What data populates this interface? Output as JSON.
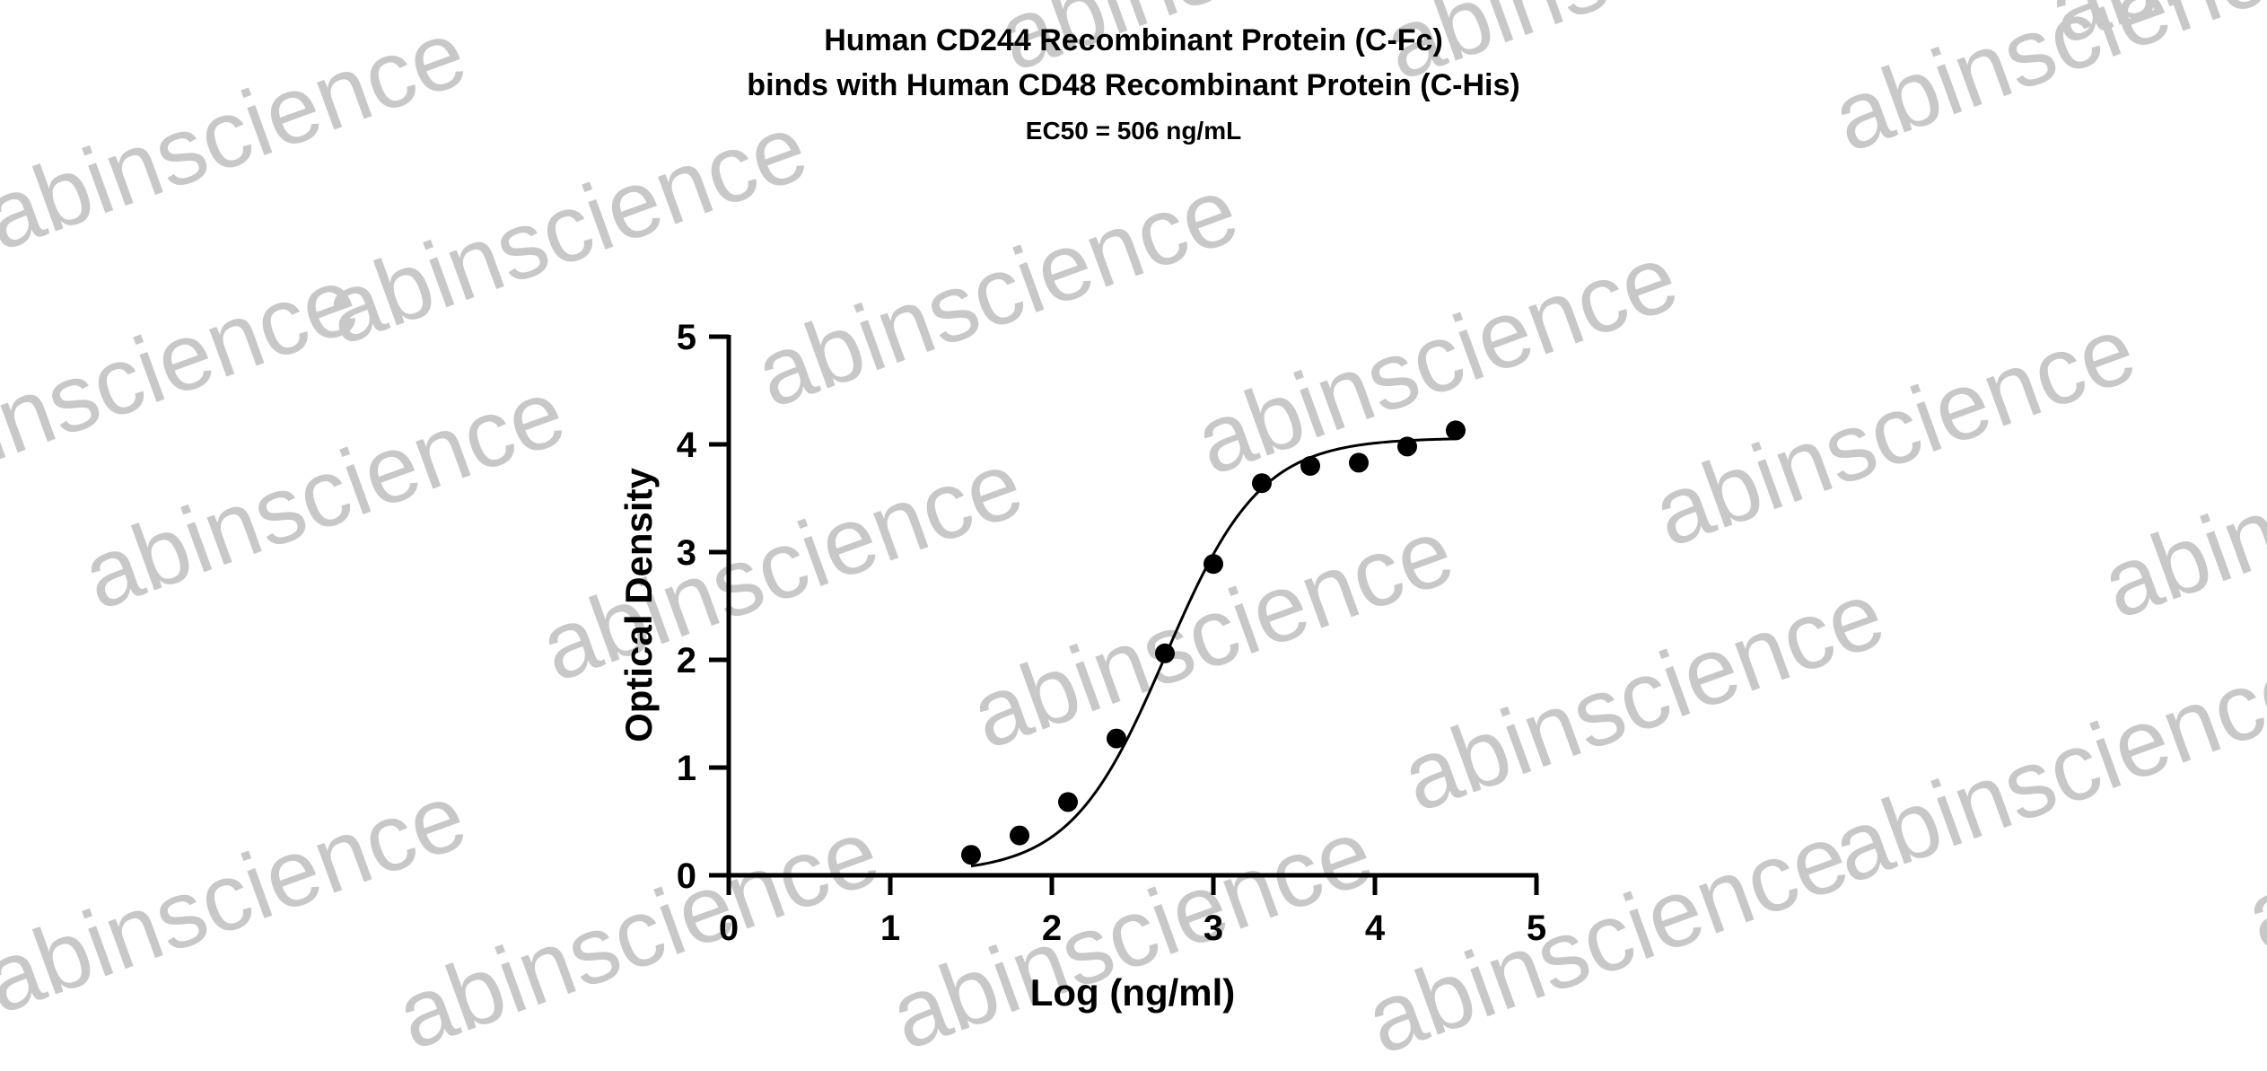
{
  "watermark": {
    "text": "abinscience",
    "color": "#c8c8c8"
  },
  "chart_data": {
    "type": "scatter",
    "title": "Human CD244 Recombinant Protein (C-Fc)",
    "title_line2": "binds with Human CD48 Recombinant Protein (C-His)",
    "subtitle": "EC50 = 506 ng/mL",
    "xlabel": "Log (ng/ml)",
    "ylabel": "Optical Density",
    "xlim": [
      0,
      5
    ],
    "ylim": [
      0,
      5
    ],
    "xticks": [
      0,
      1,
      2,
      3,
      4,
      5
    ],
    "yticks": [
      0,
      1,
      2,
      3,
      4,
      5
    ],
    "grid": false,
    "marker_color": "#000000",
    "fit": {
      "model": "4PL sigmoid",
      "bottom": 0.02,
      "top": 4.06,
      "log_ec50": 2.704,
      "hill": 1.48,
      "x_range": [
        1.5,
        4.5
      ]
    },
    "points": [
      {
        "x": 1.5,
        "y": 0.19
      },
      {
        "x": 1.8,
        "y": 0.37
      },
      {
        "x": 2.1,
        "y": 0.68
      },
      {
        "x": 2.4,
        "y": 1.27
      },
      {
        "x": 2.7,
        "y": 2.06
      },
      {
        "x": 3.0,
        "y": 2.89
      },
      {
        "x": 3.3,
        "y": 3.64
      },
      {
        "x": 3.6,
        "y": 3.8
      },
      {
        "x": 3.9,
        "y": 3.83
      },
      {
        "x": 4.2,
        "y": 3.98
      },
      {
        "x": 4.5,
        "y": 4.13
      }
    ]
  }
}
